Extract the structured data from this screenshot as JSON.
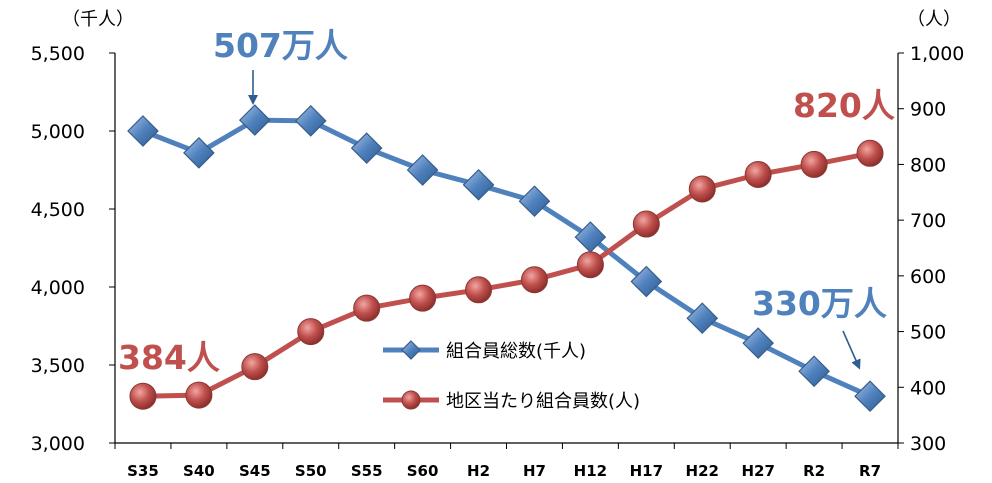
{
  "chart_data": {
    "type": "line",
    "categories": [
      "S35",
      "S40",
      "S45",
      "S50",
      "S55",
      "S60",
      "H2",
      "H7",
      "H12",
      "H17",
      "H22",
      "H27",
      "R2",
      "R7"
    ],
    "series": [
      {
        "name": "組合員総数(千人)",
        "axis": "left",
        "color": "#4F81BD",
        "marker": "diamond",
        "values": [
          5000,
          4860,
          5070,
          5065,
          4890,
          4750,
          4655,
          4550,
          4320,
          4035,
          3800,
          3640,
          3460,
          3300
        ]
      },
      {
        "name": "地区当たり組合員数(人)",
        "axis": "right",
        "color": "#C0504D",
        "marker": "circle",
        "values": [
          384,
          386,
          437,
          500,
          542,
          560,
          575,
          593,
          620,
          693,
          756,
          782,
          800,
          820
        ]
      }
    ],
    "y_left": {
      "unit_label": "（千人）",
      "ylim": [
        3000,
        5500
      ],
      "ticks": [
        "3,000",
        "3,500",
        "4,000",
        "4,500",
        "5,000",
        "5,500"
      ],
      "tick_values": [
        3000,
        3500,
        4000,
        4500,
        5000,
        5500
      ]
    },
    "y_right": {
      "unit_label": "（人）",
      "ylim": [
        300,
        1000
      ],
      "ticks": [
        "300",
        "400",
        "500",
        "600",
        "700",
        "800",
        "900",
        "1,000"
      ],
      "tick_values": [
        300,
        400,
        500,
        600,
        700,
        800,
        900,
        1000
      ]
    },
    "legend_position": "center",
    "grid": false,
    "annotations": [
      {
        "text": "507万人",
        "series": 0,
        "index": 2,
        "color": "#4F81BD",
        "arrow": true
      },
      {
        "text": "330万人",
        "series": 0,
        "index": 13,
        "color": "#4F81BD",
        "arrow": true
      },
      {
        "text": "384人",
        "series": 1,
        "index": 0,
        "color": "#C0504D",
        "arrow": false
      },
      {
        "text": "820人",
        "series": 1,
        "index": 13,
        "color": "#C0504D",
        "arrow": false
      }
    ]
  }
}
